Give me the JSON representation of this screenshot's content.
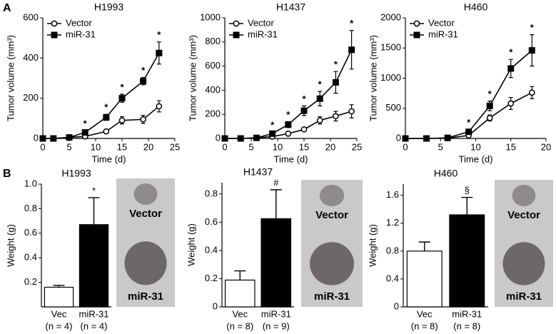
{
  "panels": [
    "A",
    "B"
  ],
  "chart_data": [
    {
      "type": "line",
      "title": "H1993",
      "xlabel": "Time (d)",
      "ylabel": "Tumor volume (mm³)",
      "x": [
        0,
        2,
        5,
        8,
        12,
        15,
        19,
        22
      ],
      "xlim": [
        0,
        25
      ],
      "xticks": [
        0,
        5,
        10,
        15,
        20,
        25
      ],
      "ylim": [
        0,
        600
      ],
      "yticks": [
        0,
        200,
        400,
        600
      ],
      "series": [
        {
          "name": "Vector",
          "color": "#000000",
          "marker": "circle",
          "marker_fill": "#ffffff",
          "values": [
            0,
            0,
            5,
            10,
            35,
            90,
            95,
            160
          ],
          "errors": [
            0,
            0,
            3,
            5,
            8,
            18,
            20,
            28
          ]
        },
        {
          "name": "miR-31",
          "color": "#000000",
          "marker": "square",
          "marker_fill": "#000000",
          "values": [
            0,
            0,
            5,
            30,
            105,
            200,
            285,
            425
          ],
          "errors": [
            0,
            0,
            3,
            8,
            15,
            20,
            18,
            55
          ]
        }
      ],
      "annotations": [
        {
          "x": 8,
          "text": "*"
        },
        {
          "x": 12,
          "text": "*"
        },
        {
          "x": 15,
          "text": "*"
        },
        {
          "x": 19,
          "text": "*"
        },
        {
          "x": 22,
          "text": "*"
        }
      ]
    },
    {
      "type": "line",
      "title": "H1437",
      "xlabel": "Time (d)",
      "ylabel": "Tumor volume (mm³)",
      "x": [
        0,
        3,
        6,
        9,
        12,
        15,
        18,
        21,
        24
      ],
      "xlim": [
        0,
        25
      ],
      "xticks": [
        0,
        5,
        10,
        15,
        20,
        25
      ],
      "ylim": [
        0,
        1000
      ],
      "yticks": [
        0,
        200,
        400,
        600,
        800,
        1000
      ],
      "series": [
        {
          "name": "Vector",
          "color": "#000000",
          "marker": "circle",
          "marker_fill": "#ffffff",
          "values": [
            0,
            0,
            5,
            15,
            40,
            75,
            150,
            185,
            225
          ],
          "errors": [
            0,
            0,
            2,
            5,
            8,
            12,
            30,
            40,
            55
          ]
        },
        {
          "name": "miR-31",
          "color": "#000000",
          "marker": "square",
          "marker_fill": "#000000",
          "values": [
            0,
            0,
            5,
            40,
            115,
            230,
            330,
            465,
            735
          ],
          "errors": [
            0,
            0,
            3,
            12,
            25,
            40,
            60,
            90,
            160
          ]
        }
      ],
      "annotations": [
        {
          "x": 9,
          "text": "*"
        },
        {
          "x": 12,
          "text": "*"
        },
        {
          "x": 15,
          "text": "*"
        },
        {
          "x": 18,
          "text": "*"
        },
        {
          "x": 21,
          "text": "*"
        },
        {
          "x": 24,
          "text": "*"
        }
      ]
    },
    {
      "type": "line",
      "title": "H460",
      "xlabel": "Time (d)",
      "ylabel": "Tumor volume (mm³)",
      "x": [
        0,
        3,
        6,
        9,
        12,
        15,
        18
      ],
      "xlim": [
        0,
        20
      ],
      "xticks": [
        0,
        5,
        10,
        15,
        20
      ],
      "ylim": [
        0,
        2000
      ],
      "yticks": [
        0,
        500,
        1000,
        1500,
        2000
      ],
      "series": [
        {
          "name": "Vector",
          "color": "#000000",
          "marker": "circle",
          "marker_fill": "#ffffff",
          "values": [
            0,
            0,
            5,
            50,
            340,
            580,
            760
          ],
          "errors": [
            0,
            0,
            5,
            30,
            50,
            100,
            100
          ]
        },
        {
          "name": "miR-31",
          "color": "#000000",
          "marker": "square",
          "marker_fill": "#000000",
          "values": [
            0,
            0,
            10,
            110,
            540,
            1160,
            1460
          ],
          "errors": [
            0,
            0,
            5,
            40,
            80,
            150,
            260
          ]
        }
      ],
      "annotations": [
        {
          "x": 9,
          "text": "*"
        },
        {
          "x": 12,
          "text": "*"
        },
        {
          "x": 15,
          "text": "*"
        },
        {
          "x": 18,
          "text": "*"
        }
      ]
    },
    {
      "type": "bar",
      "title": "H1993",
      "ylabel": "Weight (g)",
      "categories": [
        "Vec",
        "miR-31"
      ],
      "category_notes": [
        "(n = 4)",
        "(n = 4)"
      ],
      "values": [
        0.16,
        0.67
      ],
      "errors": [
        0.015,
        0.22
      ],
      "colors": [
        "#ffffff",
        "#000000"
      ],
      "ylim": [
        0,
        1.0
      ],
      "yticks": [
        0.2,
        0.4,
        0.6,
        0.8,
        {
          "value": 1.0,
          "label": "1.0"
        }
      ],
      "annotation": "*",
      "photo_labels": [
        "Vector",
        "miR-31"
      ]
    },
    {
      "type": "bar",
      "title": "H1437",
      "ylabel": "Weight (g)",
      "categories": [
        "Vec",
        "miR-31"
      ],
      "category_notes": [
        "(n = 8)",
        "(n = 9)"
      ],
      "values": [
        0.19,
        0.625
      ],
      "errors": [
        0.065,
        0.205
      ],
      "colors": [
        "#ffffff",
        "#000000"
      ],
      "ylim": [
        0,
        0.88
      ],
      "yticks": [
        0,
        0.2,
        0.4,
        0.6,
        0.8
      ],
      "annotation": "#",
      "photo_labels": [
        "Vector",
        "miR-31"
      ]
    },
    {
      "type": "bar",
      "title": "H460",
      "ylabel": "Weight (g)",
      "categories": [
        "Vec",
        "miR-31"
      ],
      "category_notes": [
        "(n = 8)",
        "(n = 8)"
      ],
      "values": [
        0.8,
        1.32
      ],
      "errors": [
        0.13,
        0.25
      ],
      "colors": [
        "#ffffff",
        "#000000"
      ],
      "ylim": [
        0,
        1.76
      ],
      "yticks": [
        0,
        0.4,
        0.8,
        1.2,
        1.6
      ],
      "annotation": "§",
      "photo_labels": [
        "Vector",
        "miR-31"
      ]
    }
  ]
}
